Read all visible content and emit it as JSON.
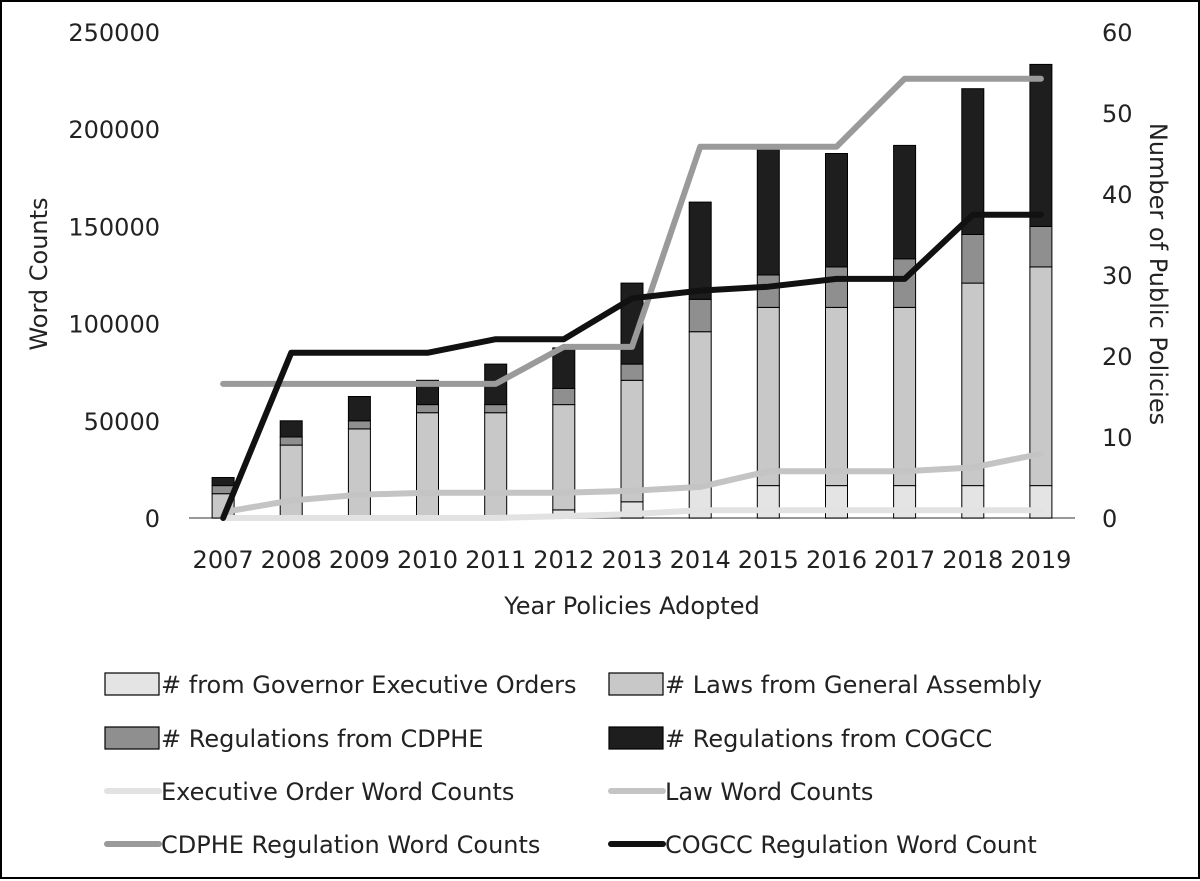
{
  "chart_data": {
    "type": "bar",
    "stacked": true,
    "title": "",
    "xlabel": "Year Policies Adopted",
    "ylabel": "Word Counts",
    "y2label": "Number of Public Policies",
    "ylim": [
      0,
      250000
    ],
    "y2lim": [
      0,
      60
    ],
    "yticks": [
      "250000",
      "200000",
      "150000",
      "100000",
      "50000",
      "0"
    ],
    "y2ticks": [
      "60",
      "50",
      "40",
      "30",
      "20",
      "10",
      "0"
    ],
    "categories": [
      "2007",
      "2008",
      "2009",
      "2010",
      "2011",
      "2012",
      "2013",
      "2014",
      "2015",
      "2016",
      "2017",
      "2018",
      "2019"
    ],
    "bar_series": [
      {
        "name": "# from Governor Executive Orders",
        "color": "#e4e4e4",
        "values": [
          0,
          0,
          0,
          0,
          0,
          1,
          2,
          4,
          4,
          4,
          4,
          4,
          4
        ]
      },
      {
        "name": "# Laws from General Assembly",
        "color": "#c8c8c8",
        "values": [
          3,
          9,
          11,
          13,
          13,
          13,
          15,
          19,
          22,
          22,
          22,
          25,
          27
        ]
      },
      {
        "name": "# Regulations from CDPHE",
        "color": "#8f8f8f",
        "values": [
          1,
          1,
          1,
          1,
          1,
          2,
          2,
          4,
          4,
          5,
          6,
          6,
          5
        ]
      },
      {
        "name": "# Regulations from COGCC",
        "color": "#1e1e1e",
        "values": [
          1,
          2,
          3,
          3,
          5,
          5,
          10,
          12,
          16,
          14,
          14,
          18,
          20
        ]
      }
    ],
    "line_series": [
      {
        "name": "Executive Order Word Counts",
        "color": "#e2e2e2",
        "values": [
          0,
          0,
          0,
          0,
          0,
          1000,
          2000,
          4000,
          4000,
          4000,
          4000,
          4000,
          4000
        ]
      },
      {
        "name": "Law Word Counts",
        "color": "#c4c4c4",
        "values": [
          3000,
          9000,
          12000,
          13000,
          13000,
          13000,
          14000,
          16000,
          24000,
          24000,
          24000,
          26000,
          33000
        ]
      },
      {
        "name": "CDPHE Regulation Word Counts",
        "color": "#9a9a9a",
        "values": [
          69000,
          69000,
          69000,
          69000,
          69000,
          88000,
          88000,
          191000,
          191000,
          191000,
          226000,
          226000,
          226000
        ]
      },
      {
        "name": "COGCC Regulation Word Count",
        "color": "#111111",
        "values": [
          0,
          85000,
          85000,
          85000,
          92000,
          92000,
          113000,
          117000,
          119000,
          123000,
          123000,
          156000,
          156000
        ]
      }
    ],
    "legend_position": "bottom"
  }
}
